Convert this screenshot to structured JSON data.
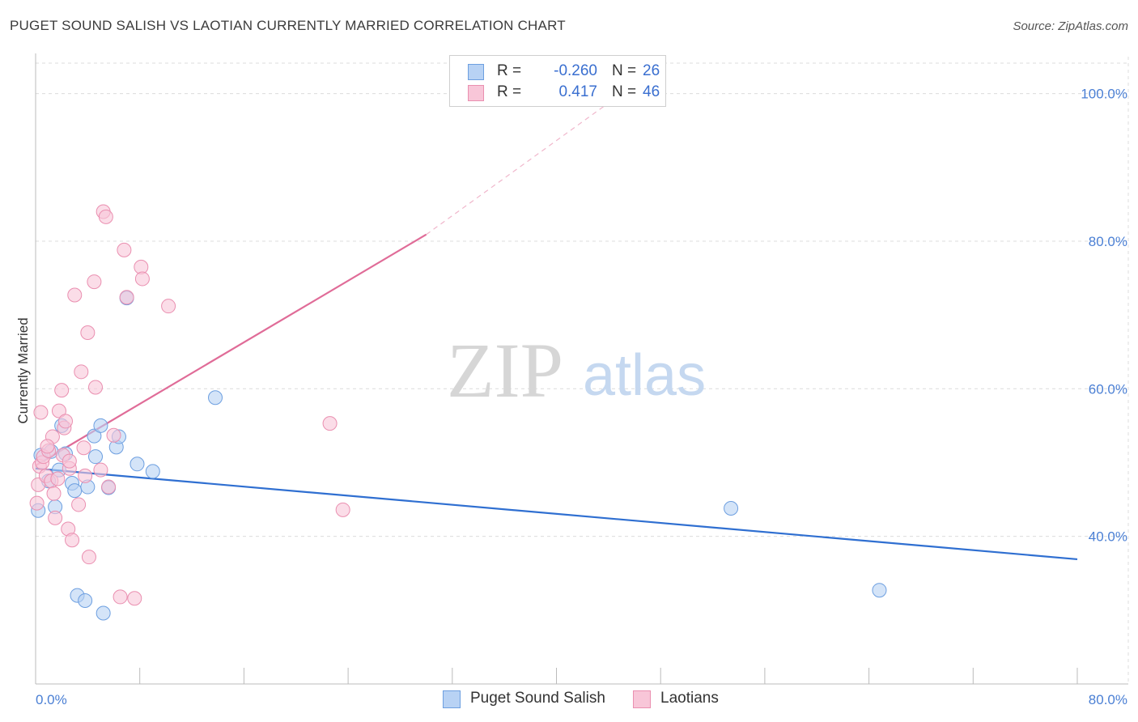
{
  "title": "PUGET SOUND SALISH VS LAOTIAN CURRENTLY MARRIED CORRELATION CHART",
  "source": "Source: ZipAtlas.com",
  "watermark": {
    "zip": "ZIP",
    "atlas": "atlas"
  },
  "legend": {
    "rows": [
      {
        "r_label": "R =",
        "r_value": "-0.260",
        "n_label": "N =",
        "n_value": "26"
      },
      {
        "r_label": "R =",
        "r_value": "0.417",
        "n_label": "N =",
        "n_value": "46"
      }
    ]
  },
  "bottom_legend": [
    "Puget Sound Salish",
    "Laotians"
  ],
  "colors": {
    "blue_fill": "#b8d2f4",
    "blue_stroke": "#6d9fe0",
    "blue_line": "#2f6fd1",
    "pink_fill": "#f8c6d8",
    "pink_stroke": "#ea8fb0",
    "pink_line": "#e06c98",
    "grid": "#dcdcdc",
    "tick_text": "#4a7fd4"
  },
  "chart_data": {
    "type": "scatter",
    "title": "PUGET SOUND SALISH VS LAOTIAN CURRENTLY MARRIED CORRELATION CHART",
    "xlabel": "",
    "ylabel": "Currently Married",
    "xlim": [
      0,
      80
    ],
    "ylim": [
      20,
      105
    ],
    "x_tick_labels": [
      "0.0%",
      "80.0%"
    ],
    "y_ticks": [
      40,
      60,
      80,
      100
    ],
    "y_tick_labels": [
      "40.0%",
      "60.0%",
      "80.0%",
      "100.0%"
    ],
    "grid": true,
    "series": [
      {
        "name": "Puget Sound Salish",
        "color": "blue",
        "x": [
          0.2,
          0.4,
          1.0,
          1.2,
          1.5,
          1.8,
          2.0,
          2.3,
          2.8,
          3.0,
          3.2,
          3.8,
          4.0,
          4.5,
          4.6,
          5.0,
          5.2,
          5.6,
          6.2,
          6.4,
          7.0,
          7.8,
          9.0,
          13.8,
          53.4,
          64.8
        ],
        "y": [
          43.5,
          51.0,
          47.5,
          51.5,
          44.0,
          49.0,
          55.0,
          51.2,
          47.2,
          46.2,
          32.0,
          31.3,
          46.7,
          53.6,
          50.8,
          55.0,
          29.6,
          46.6,
          52.1,
          53.5,
          72.3,
          49.8,
          48.8,
          58.8,
          43.8,
          32.7
        ]
      },
      {
        "name": "Laotians",
        "color": "pink",
        "x": [
          0.1,
          0.2,
          0.3,
          0.5,
          0.6,
          0.8,
          1.0,
          1.2,
          1.3,
          1.4,
          1.5,
          1.7,
          1.8,
          2.0,
          2.1,
          2.2,
          2.3,
          2.5,
          2.6,
          2.8,
          3.0,
          3.3,
          3.5,
          3.7,
          3.8,
          4.0,
          4.1,
          4.5,
          4.6,
          5.0,
          5.2,
          5.4,
          5.6,
          6.0,
          6.5,
          6.8,
          7.0,
          7.6,
          8.1,
          8.2,
          10.2,
          22.6,
          23.6,
          0.4,
          0.9,
          2.6
        ],
        "y": [
          44.5,
          47.0,
          49.5,
          50.0,
          50.8,
          48.2,
          51.6,
          47.5,
          53.5,
          45.8,
          42.5,
          47.8,
          57.0,
          59.8,
          51.0,
          54.7,
          55.6,
          41.0,
          49.2,
          39.5,
          72.7,
          44.3,
          62.3,
          52.0,
          48.2,
          67.6,
          37.2,
          74.5,
          60.2,
          49.0,
          84.0,
          83.3,
          46.7,
          53.7,
          31.8,
          78.8,
          72.4,
          31.6,
          76.5,
          74.9,
          71.2,
          55.3,
          43.6,
          56.8,
          52.2,
          50.2
        ]
      }
    ],
    "trend_lines": [
      {
        "series": "Puget Sound Salish",
        "x": [
          0,
          80
        ],
        "y": [
          49.2,
          36.9
        ]
      },
      {
        "series": "Laotians",
        "x": [
          0,
          30
        ],
        "y": [
          49.6,
          80.9
        ],
        "dashed_extension_to": [
          45,
          100
        ]
      }
    ]
  }
}
